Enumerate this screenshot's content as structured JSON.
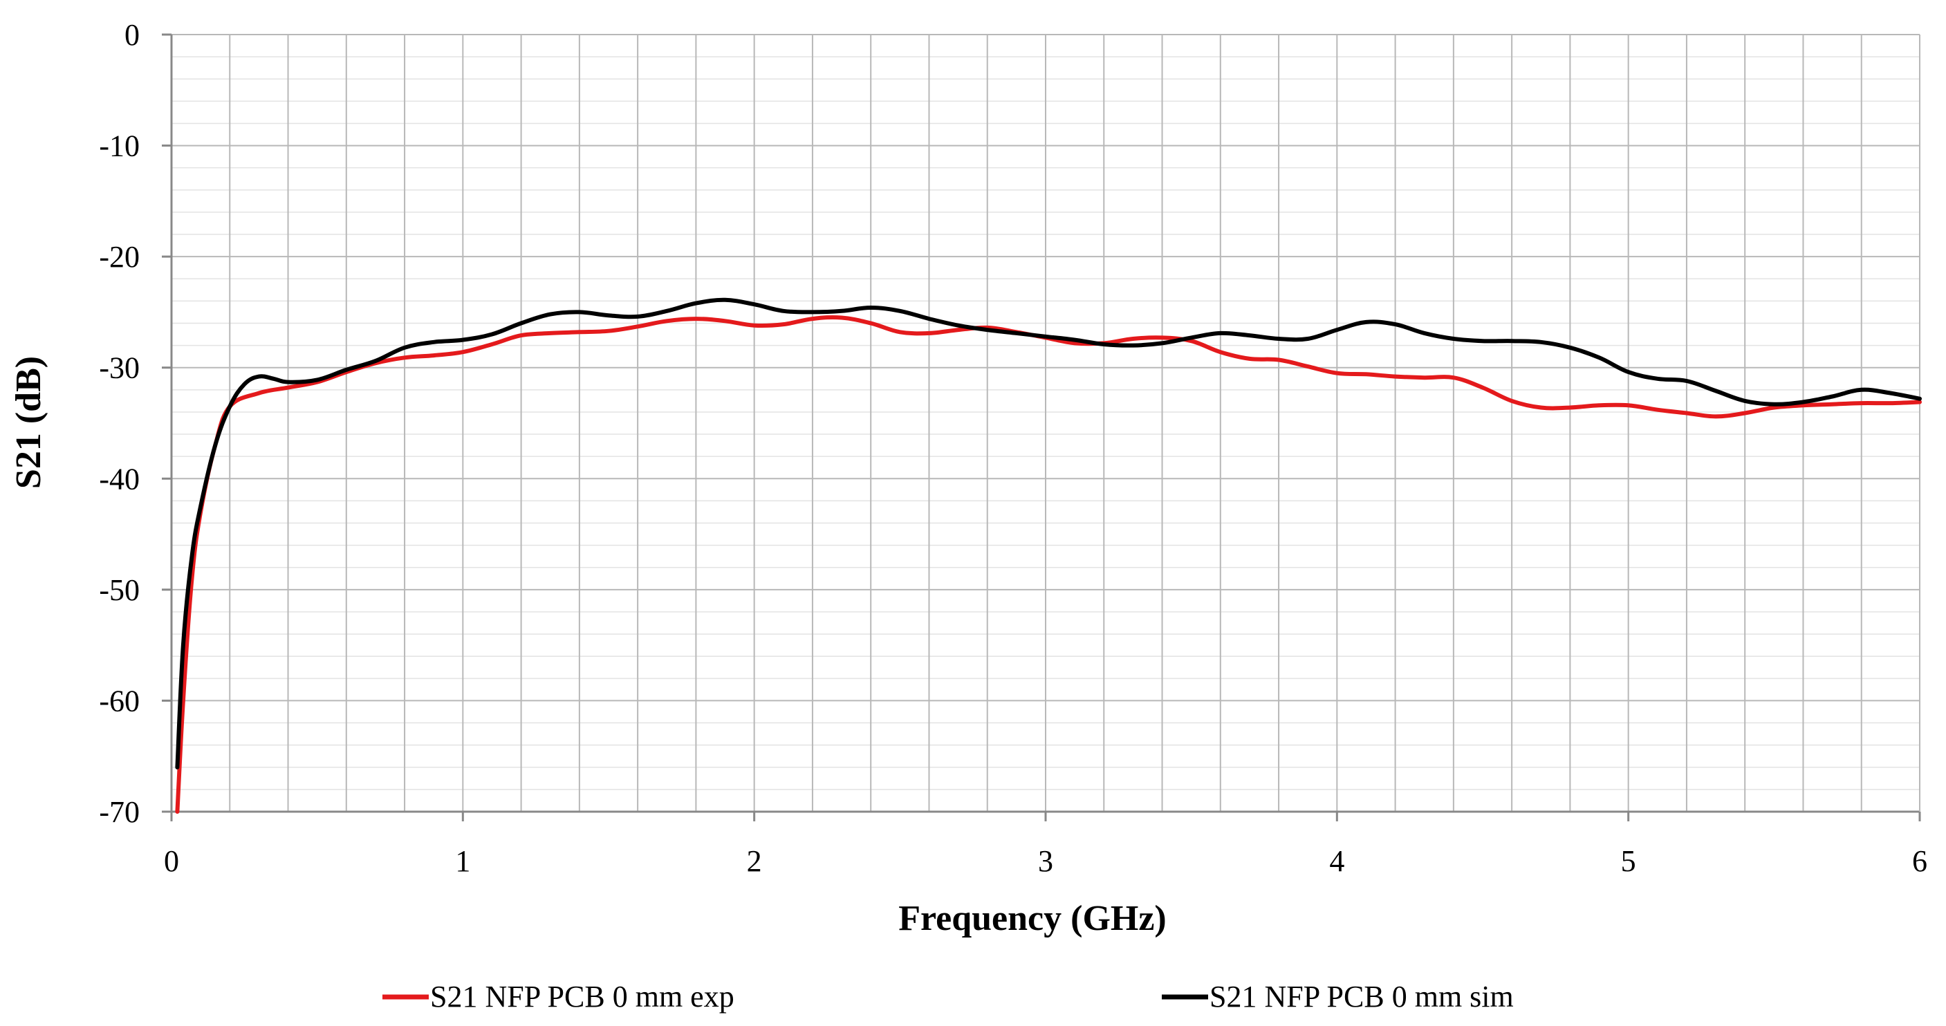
{
  "chart_data": {
    "type": "line",
    "title": "",
    "xlabel": "Frequency (GHz)",
    "ylabel": "S21 (dB)",
    "xlim": [
      0,
      6
    ],
    "ylim": [
      -70,
      0
    ],
    "xticks": [
      0,
      1,
      2,
      3,
      4,
      5,
      6
    ],
    "yticks": [
      0,
      -10,
      -20,
      -30,
      -40,
      -50,
      -60,
      -70
    ],
    "grid": true,
    "legend": "bottom",
    "series": [
      {
        "name": "S21 NFP PCB 0 mm exp",
        "color": "#e41a1c",
        "x": [
          0.02,
          0.04,
          0.07,
          0.1,
          0.15,
          0.2,
          0.3,
          0.4,
          0.5,
          0.6,
          0.7,
          0.8,
          0.9,
          1.0,
          1.1,
          1.2,
          1.3,
          1.4,
          1.5,
          1.6,
          1.7,
          1.8,
          1.9,
          2.0,
          2.1,
          2.2,
          2.3,
          2.4,
          2.5,
          2.6,
          2.7,
          2.8,
          2.9,
          3.0,
          3.1,
          3.2,
          3.3,
          3.4,
          3.5,
          3.6,
          3.7,
          3.8,
          3.9,
          4.0,
          4.1,
          4.2,
          4.3,
          4.4,
          4.5,
          4.6,
          4.7,
          4.8,
          4.9,
          5.0,
          5.1,
          5.2,
          5.3,
          5.4,
          5.5,
          5.6,
          5.7,
          5.8,
          5.9,
          6.0
        ],
        "y": [
          -70,
          -60,
          -49,
          -43,
          -37,
          -33.5,
          -32.3,
          -31.8,
          -31.3,
          -30.4,
          -29.6,
          -29.1,
          -28.9,
          -28.6,
          -27.9,
          -27.1,
          -26.9,
          -26.8,
          -26.7,
          -26.3,
          -25.8,
          -25.6,
          -25.8,
          -26.2,
          -26.1,
          -25.6,
          -25.5,
          -26.0,
          -26.8,
          -26.9,
          -26.6,
          -26.4,
          -26.8,
          -27.3,
          -27.8,
          -27.8,
          -27.4,
          -27.3,
          -27.6,
          -28.6,
          -29.2,
          -29.3,
          -29.9,
          -30.5,
          -30.6,
          -30.8,
          -30.9,
          -30.9,
          -31.8,
          -33.0,
          -33.6,
          -33.6,
          -33.4,
          -33.4,
          -33.8,
          -34.1,
          -34.4,
          -34.1,
          -33.6,
          -33.4,
          -33.3,
          -33.2,
          -33.2,
          -33.1
        ]
      },
      {
        "name": "S21 NFP PCB 0 mm sim",
        "color": "#000000",
        "x": [
          0.02,
          0.04,
          0.07,
          0.1,
          0.15,
          0.2,
          0.25,
          0.3,
          0.35,
          0.4,
          0.5,
          0.6,
          0.7,
          0.8,
          0.9,
          1.0,
          1.1,
          1.2,
          1.3,
          1.4,
          1.5,
          1.6,
          1.7,
          1.8,
          1.9,
          2.0,
          2.1,
          2.2,
          2.3,
          2.4,
          2.5,
          2.6,
          2.7,
          2.8,
          2.9,
          3.0,
          3.1,
          3.2,
          3.3,
          3.4,
          3.5,
          3.6,
          3.7,
          3.8,
          3.9,
          4.0,
          4.1,
          4.2,
          4.3,
          4.4,
          4.5,
          4.6,
          4.7,
          4.8,
          4.9,
          5.0,
          5.1,
          5.2,
          5.3,
          5.4,
          5.5,
          5.6,
          5.7,
          5.8,
          5.9,
          6.0
        ],
        "y": [
          -66,
          -55,
          -47,
          -42.5,
          -37,
          -33.5,
          -31.5,
          -30.8,
          -31.0,
          -31.3,
          -31.1,
          -30.2,
          -29.4,
          -28.2,
          -27.7,
          -27.5,
          -27.0,
          -26.0,
          -25.2,
          -25.0,
          -25.3,
          -25.4,
          -24.9,
          -24.2,
          -23.9,
          -24.3,
          -24.9,
          -25.0,
          -24.9,
          -24.6,
          -24.9,
          -25.6,
          -26.2,
          -26.6,
          -26.9,
          -27.2,
          -27.5,
          -27.9,
          -28.0,
          -27.8,
          -27.3,
          -26.9,
          -27.1,
          -27.4,
          -27.4,
          -26.6,
          -25.9,
          -26.1,
          -26.9,
          -27.4,
          -27.6,
          -27.6,
          -27.7,
          -28.2,
          -29.1,
          -30.4,
          -31.0,
          -31.2,
          -32.1,
          -33.0,
          -33.3,
          -33.1,
          -32.6,
          -32.0,
          -32.3,
          -32.8
        ]
      }
    ]
  }
}
